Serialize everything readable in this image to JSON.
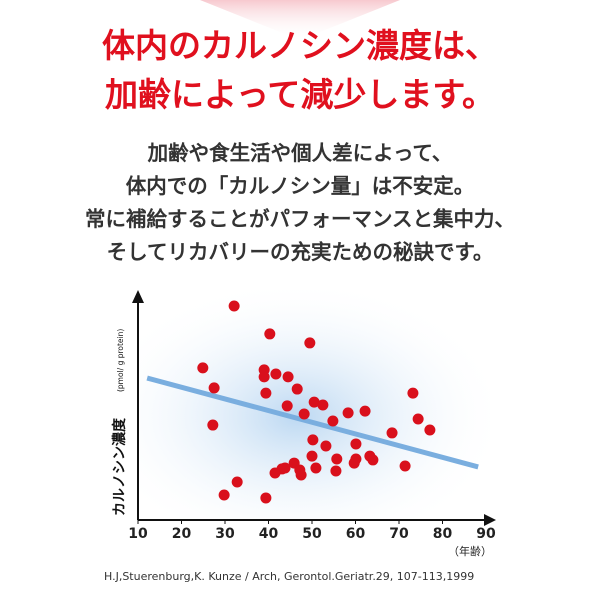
{
  "header": {
    "title_lines": [
      "体内のカルノシン濃度は、",
      "加齢によって減少します。"
    ],
    "body_lines": [
      "加齢や食生活や個人差によって、",
      "体内での「カルノシン量」は不安定。",
      "常に補給することがパフォーマンスと集中力、",
      "そしてリカバリーの充実ための秘訣です。"
    ]
  },
  "chart_data": {
    "type": "scatter",
    "ylabel": "カルノシン濃度",
    "ylabel_unit": "(pmol/ g protein)",
    "xlabel": "（年齢）",
    "xlim": [
      10,
      90
    ],
    "xticks": [
      10,
      20,
      30,
      40,
      50,
      60,
      70,
      80,
      90
    ],
    "ylim": [
      0,
      100
    ],
    "color": "#d9101c",
    "x": [
      32.1,
      40.3,
      49.5,
      24.9,
      39.0,
      41.7,
      39.0,
      44.5,
      27.5,
      39.4,
      46.6,
      73.2,
      44.3,
      50.5,
      52.5,
      62.2,
      58.3,
      48.2,
      74.4,
      27.2,
      54.8,
      77.1,
      68.4,
      50.2,
      53.2,
      60.1,
      50.0,
      55.7,
      63.3,
      60.1,
      64.0,
      45.9,
      59.7,
      43.1,
      50.9,
      47.2,
      55.5,
      71.4,
      41.5,
      43.8,
      47.5,
      32.8,
      29.8,
      39.4
    ],
    "y": [
      95.1,
      82.7,
      78.7,
      67.6,
      66.7,
      64.9,
      63.6,
      63.6,
      58.7,
      56.4,
      58.2,
      56.4,
      50.7,
      52.4,
      51.1,
      48.4,
      47.6,
      47.1,
      44.9,
      42.2,
      44.0,
      40.0,
      38.7,
      35.6,
      32.9,
      33.8,
      28.4,
      27.1,
      28.4,
      27.1,
      26.7,
      25.3,
      25.3,
      22.7,
      23.1,
      22.2,
      21.8,
      24.0,
      20.9,
      23.1,
      20.0,
      16.9,
      11.1,
      9.8
    ],
    "trend": {
      "x": [
        12.1,
        88.2
      ],
      "y": [
        63.1,
        23.6
      ],
      "color": "#7aaedf"
    },
    "source": "H.J,Stuerenburg,K. Kunze / Arch, Gerontol.Geriatr.29, 107-113,1999"
  }
}
